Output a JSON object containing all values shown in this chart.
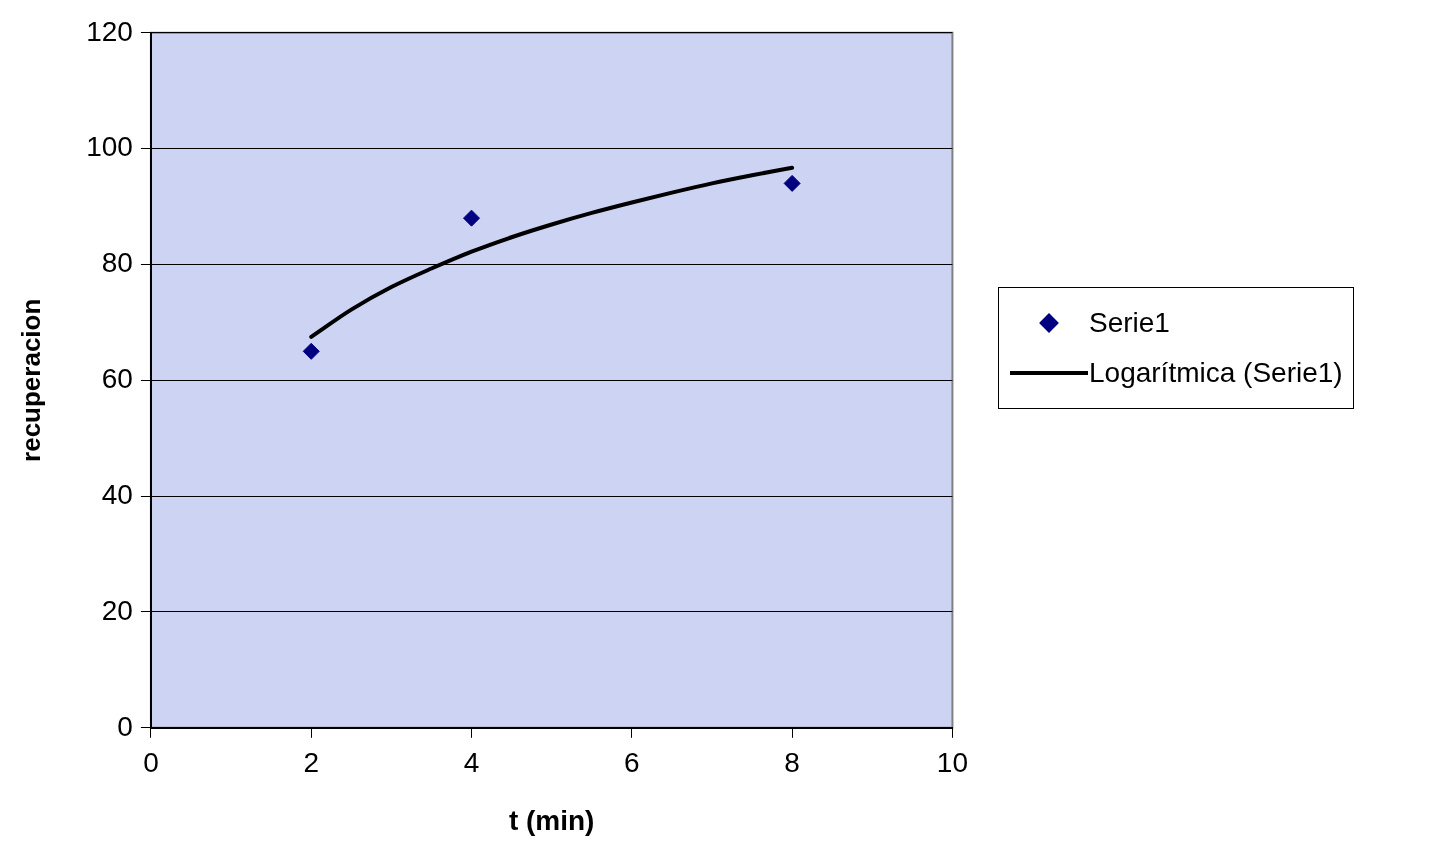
{
  "chart_data": {
    "type": "scatter",
    "xlabel": "t (min)",
    "ylabel": "recuperacion",
    "xlim": [
      0,
      10
    ],
    "xticks": [
      0,
      2,
      4,
      6,
      8,
      10
    ],
    "ylim": [
      0,
      120
    ],
    "yticks": [
      0,
      20,
      40,
      60,
      80,
      100,
      120
    ],
    "grid": "y",
    "legend": "right",
    "series": [
      {
        "name": "Serie1",
        "color": "#000080",
        "marker": "diamond",
        "x": [
          2,
          4,
          8
        ],
        "values": [
          65,
          88,
          94
        ]
      },
      {
        "name": "Logarítmica (Serie1)",
        "type": "line",
        "color": "#000000",
        "marker": "none",
        "line_style": "solid",
        "x": [
          2,
          2.5,
          3,
          3.5,
          4,
          4.5,
          5,
          5.5,
          6,
          6.5,
          7,
          7.5,
          8
        ],
        "values": [
          67.5,
          72.2,
          76.1,
          79.3,
          82.2,
          84.7,
          86.9,
          88.9,
          90.7,
          92.4,
          94.0,
          95.4,
          96.7
        ]
      }
    ]
  }
}
